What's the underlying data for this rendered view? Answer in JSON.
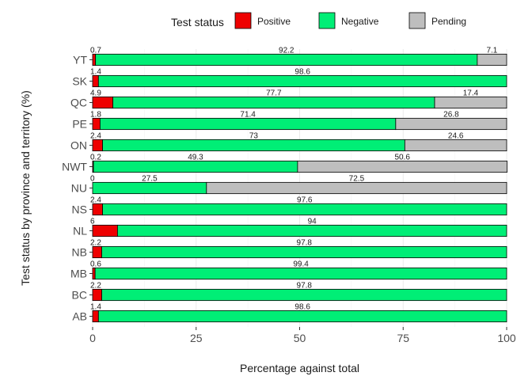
{
  "chart_data": {
    "type": "bar",
    "orientation": "horizontal",
    "stacked": true,
    "xlabel": "Percentage against total",
    "ylabel": "Test status by province and territory (%)",
    "xlim": [
      0,
      100
    ],
    "xticks": [
      0,
      25,
      50,
      75,
      100
    ],
    "grid": true,
    "legend": {
      "title": "Test status",
      "position": "top"
    },
    "categories": [
      "YT",
      "SK",
      "QC",
      "PE",
      "ON",
      "NWT",
      "NU",
      "NS",
      "NL",
      "NB",
      "MB",
      "BC",
      "AB"
    ],
    "series": [
      {
        "name": "Positive",
        "color": "#ee0000",
        "values": [
          0.7,
          1.4,
          4.9,
          1.8,
          2.4,
          0.2,
          0,
          2.4,
          6,
          2.2,
          0.6,
          2.2,
          1.4
        ]
      },
      {
        "name": "Negative",
        "color": "#00ee76",
        "values": [
          92.2,
          98.6,
          77.7,
          71.4,
          73,
          49.3,
          27.5,
          97.6,
          94,
          97.8,
          99.4,
          97.8,
          98.6
        ]
      },
      {
        "name": "Pending",
        "color": "#bebebe",
        "values": [
          7.1,
          null,
          17.4,
          26.8,
          24.6,
          50.6,
          72.5,
          null,
          null,
          null,
          null,
          null,
          null
        ]
      }
    ]
  }
}
